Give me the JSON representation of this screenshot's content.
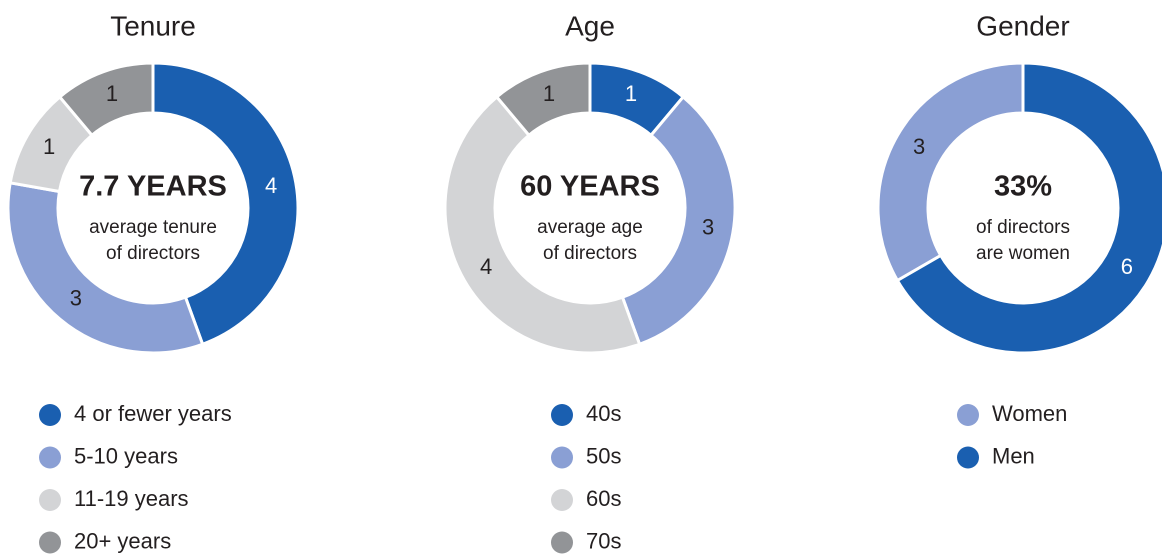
{
  "chart_data": [
    {
      "type": "pie",
      "title": "Tenure",
      "center_label": "7.7 YEARS",
      "center_text": [
        "average tenure",
        "of directors"
      ],
      "categories": [
        "4 or fewer years",
        "5-10 years",
        "11-19 years",
        "20+ years"
      ],
      "values": [
        4,
        3,
        1,
        1
      ],
      "colors": [
        "#1a5fb0",
        "#8a9fd4",
        "#d3d4d6",
        "#929497"
      ],
      "startangle": 0
    },
    {
      "type": "pie",
      "title": "Age",
      "center_label": "60 YEARS",
      "center_text": [
        "average age",
        "of directors"
      ],
      "categories": [
        "40s",
        "50s",
        "60s",
        "70s"
      ],
      "values": [
        1,
        3,
        4,
        1
      ],
      "colors": [
        "#1a5fb0",
        "#8a9fd4",
        "#d3d4d6",
        "#929497"
      ],
      "startangle": 0
    },
    {
      "type": "pie",
      "title": "Gender",
      "center_label": "33%",
      "center_text": [
        "of directors",
        "are women"
      ],
      "categories": [
        "Women",
        "Men"
      ],
      "values": [
        3,
        6
      ],
      "colors": [
        "#8a9fd4",
        "#1a5fb0"
      ],
      "startangle": -120
    }
  ]
}
